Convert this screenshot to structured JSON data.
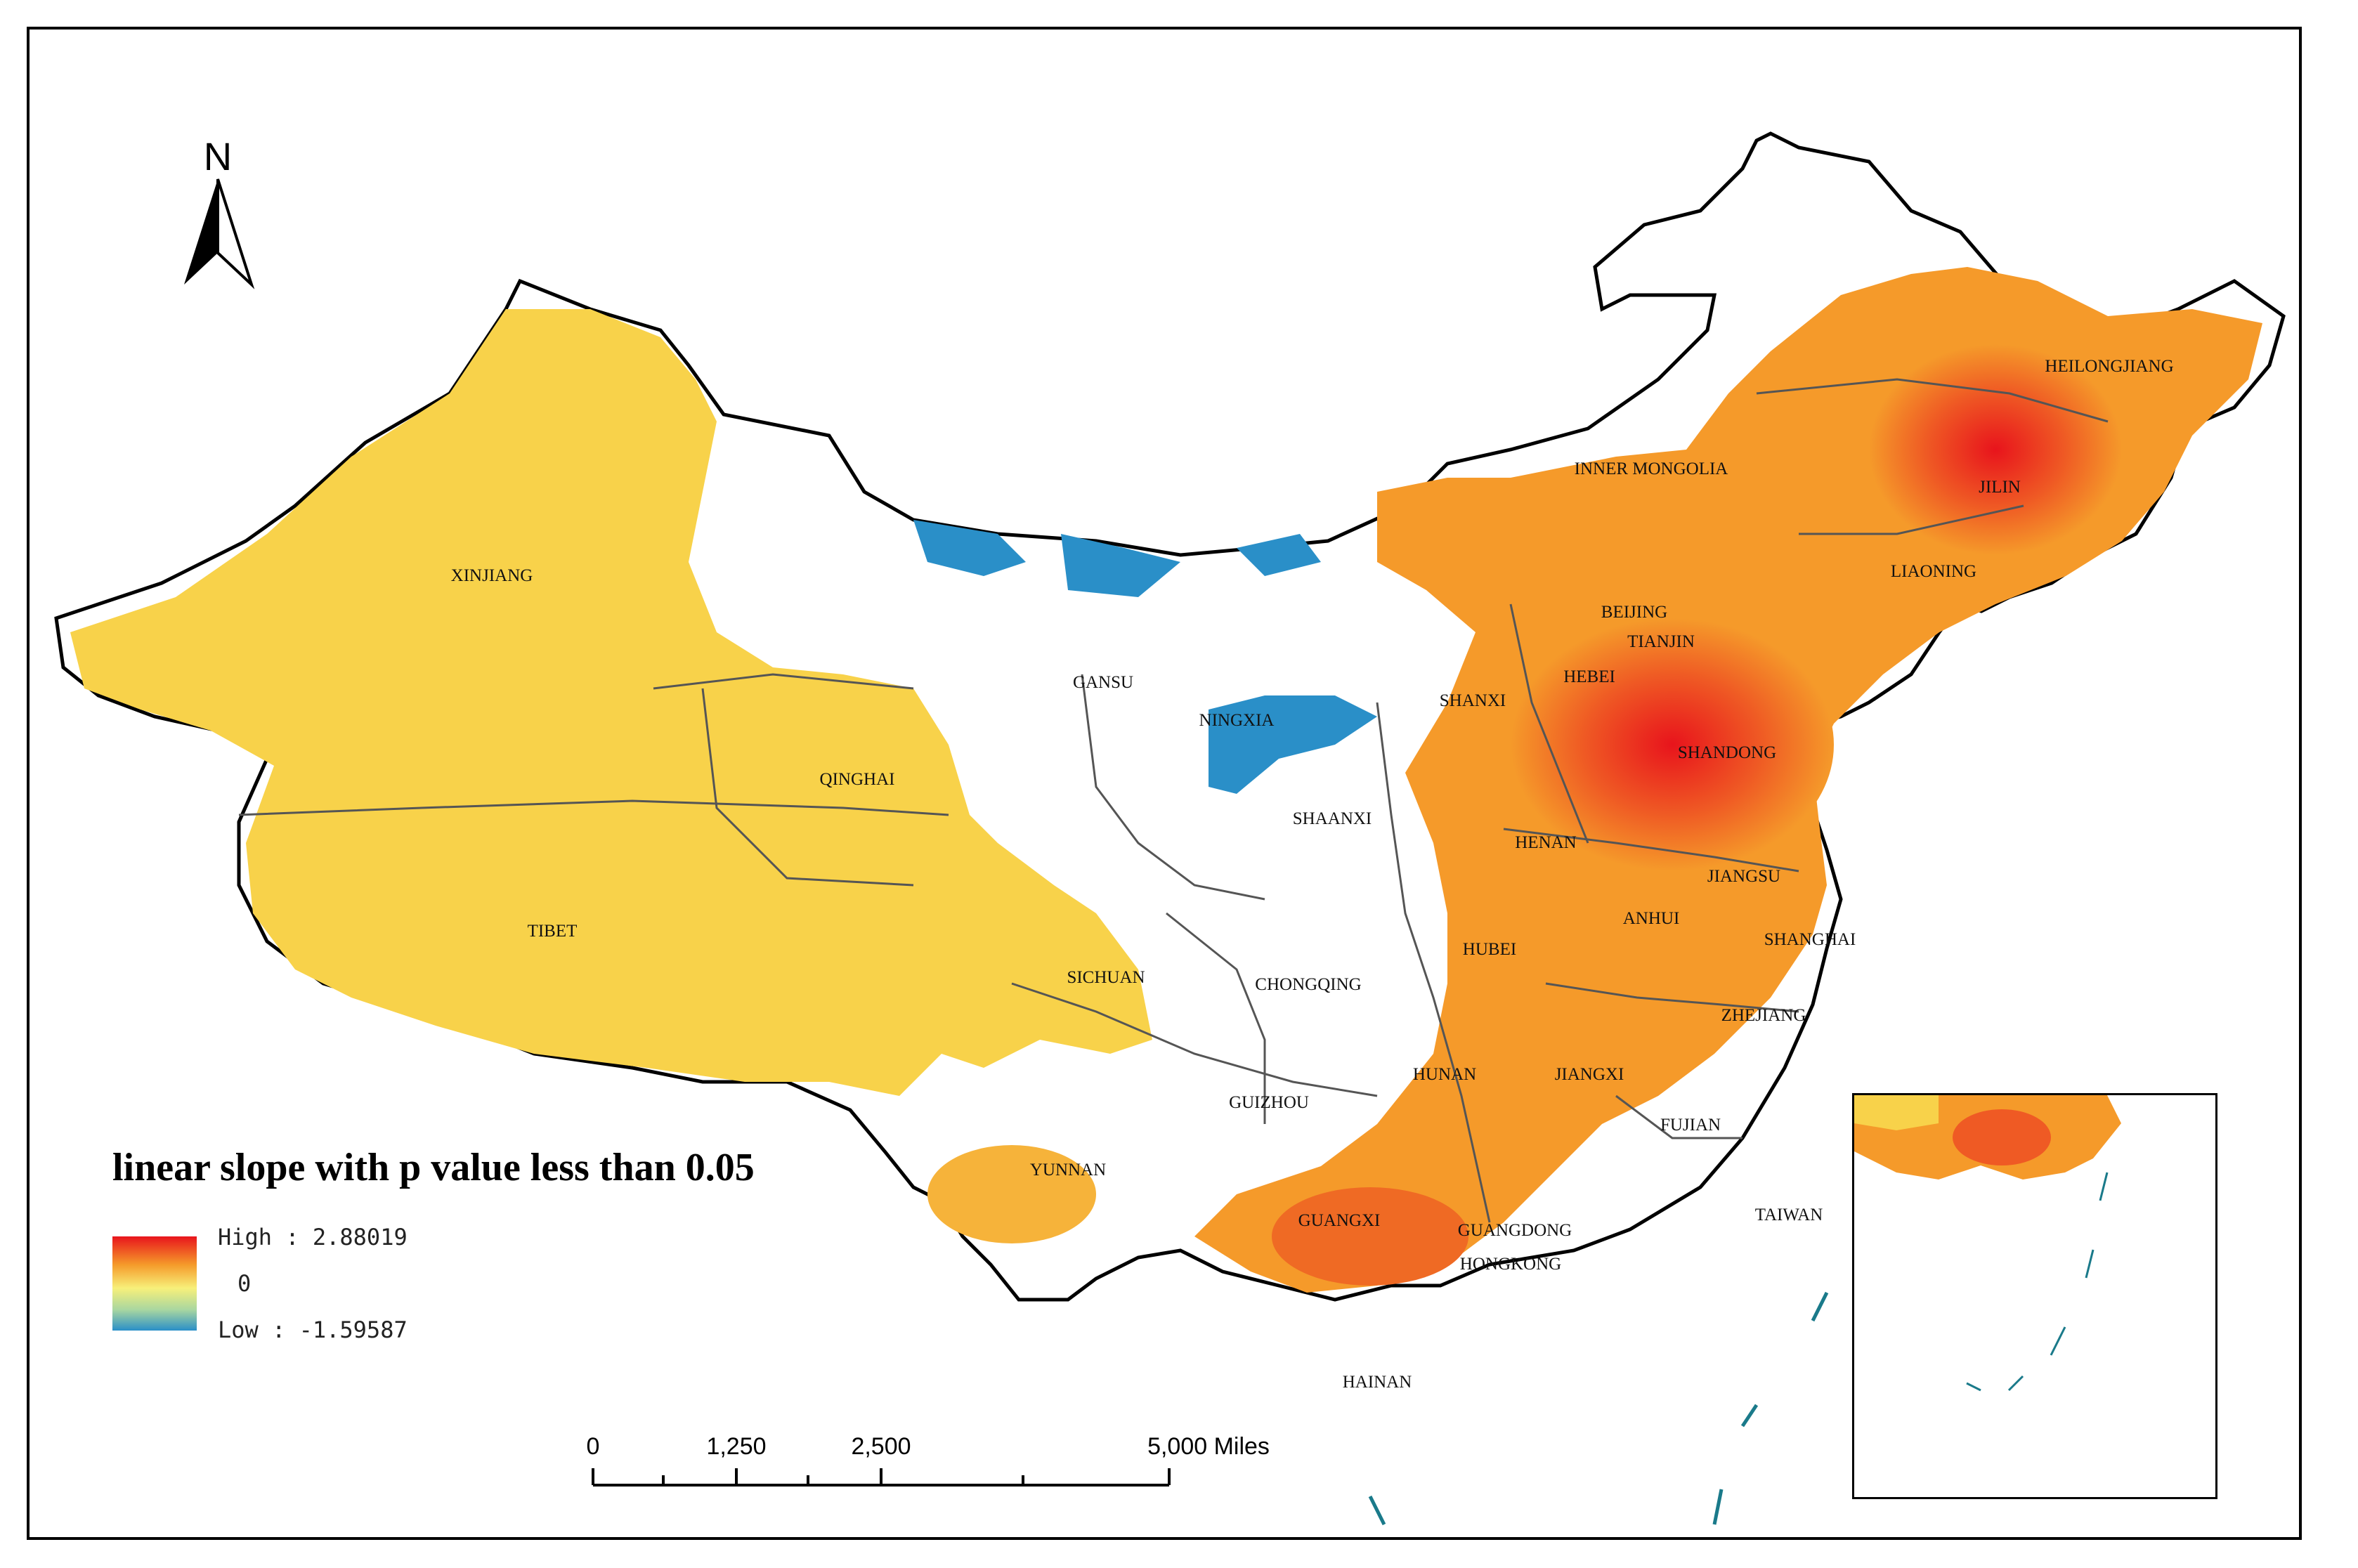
{
  "map": {
    "legend": {
      "title": "linear slope with p value less than 0.05",
      "high_label": "High : 2.88019",
      "mid_label": "0",
      "low_label": "Low : -1.59587",
      "colors": [
        "#e8141c",
        "#f59a2a",
        "#f7f07a",
        "#a8d6a0",
        "#2a8fc8"
      ]
    },
    "north_arrow": {
      "letter": "N"
    },
    "scale_bar": {
      "labels": [
        "0",
        "1,250",
        "2,500",
        "5,000 Miles"
      ]
    },
    "regions": [
      "XINJIANG",
      "TIBET",
      "QINGHAI",
      "GANSU",
      "NINGXIA",
      "INNER MONGOLIA",
      "HEILONGJIANG",
      "JILIN",
      "LIAONING",
      "BEIJING",
      "TIANJIN",
      "HEBEI",
      "SHANXI",
      "SHANDONG",
      "SHAANXI",
      "HENAN",
      "JIANGSU",
      "ANHUI",
      "SHANGHAI",
      "HUBEI",
      "SICHUAN",
      "CHONGQING",
      "ZHEJIANG",
      "HUNAN",
      "JIANGXI",
      "GUIZHOU",
      "FUJIAN",
      "YUNNAN",
      "TAIWAN",
      "GUANGXI",
      "GUANGDONG",
      "HONGKONG",
      "HAINAN"
    ]
  }
}
